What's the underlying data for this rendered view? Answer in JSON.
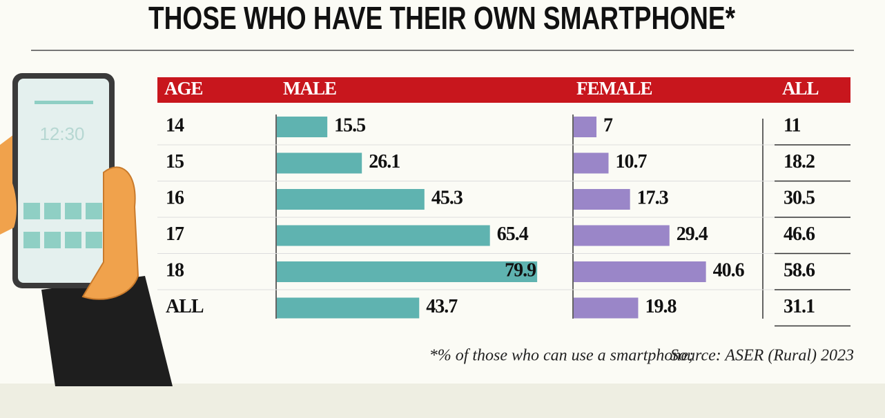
{
  "title": "THOSE WHO HAVE THEIR OWN SMARTPHONE*",
  "phone_clock": "12:30",
  "table": {
    "headers": [
      "AGE",
      "MALE",
      "FEMALE",
      "ALL"
    ],
    "male_color": "#5fb3b0",
    "female_color": "#9a86c8",
    "rows": [
      {
        "age": "14",
        "male": 15.5,
        "female": 7,
        "all": 11
      },
      {
        "age": "15",
        "male": 26.1,
        "female": 10.7,
        "all": 18.2
      },
      {
        "age": "16",
        "male": 45.3,
        "female": 17.3,
        "all": 30.5
      },
      {
        "age": "17",
        "male": 65.4,
        "female": 29.4,
        "all": 46.6
      },
      {
        "age": "18",
        "male": 79.9,
        "female": 40.6,
        "all": 58.6
      },
      {
        "age": "ALL",
        "male": 43.7,
        "female": 19.8,
        "all": 31.1
      }
    ]
  },
  "footnote": {
    "note": "*% of those who can use a smartphone;",
    "source": "Source: ASER (Rural) 2023"
  }
}
